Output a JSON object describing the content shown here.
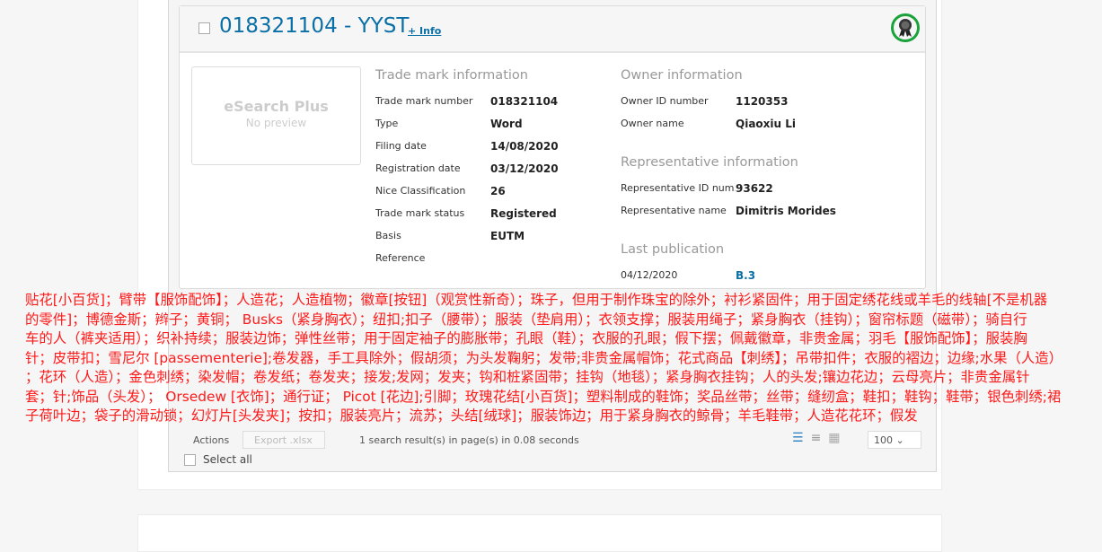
{
  "card": {
    "title": "018321104 - YYST",
    "info_link": "+ Info",
    "preview_title": "eSearch Plus",
    "preview_sub": "No preview",
    "badge_icon": "award-ribbon-icon",
    "badge_color": "#1aa33b",
    "trademark": {
      "heading": "Trade mark information",
      "rows": [
        {
          "k": "Trade mark number",
          "v": "018321104"
        },
        {
          "k": "Type",
          "v": "Word"
        },
        {
          "k": "Filing date",
          "v": "14/08/2020"
        },
        {
          "k": "Registration date",
          "v": "03/12/2020"
        },
        {
          "k": "Nice Classification",
          "v": "26"
        },
        {
          "k": "Trade mark status",
          "v": "Registered"
        },
        {
          "k": "Basis",
          "v": "EUTM"
        },
        {
          "k": "Reference",
          "v": ""
        }
      ]
    },
    "owner": {
      "heading": "Owner information",
      "rows": [
        {
          "k": "Owner ID number",
          "v": "1120353"
        },
        {
          "k": "Owner name",
          "v": "Qiaoxiu Li"
        }
      ]
    },
    "representative": {
      "heading": "Representative information",
      "rows": [
        {
          "k": "Representative ID num...",
          "v": "93622"
        },
        {
          "k": "Representative name",
          "v": "Dimitris Morides"
        }
      ]
    },
    "publication": {
      "heading": "Last publication",
      "date": "04/12/2020",
      "code": "B.3"
    }
  },
  "toolbar": {
    "actions": "Actions",
    "export": "Export .xlsx",
    "status": "search result(s) in page(s) in 0.08 seconds",
    "count": "1",
    "per_page": "100",
    "select_all": "Select all"
  },
  "overlay_lines": [
    "贴花[小百货]；臂带【服饰配饰】；人造花；人造植物；徽章[按钮]（观赏性新奇）；珠子，但用于制作珠宝的除外；衬衫紧固件；用于固定绣花线或羊毛的线轴[不是机器",
    "的零件]；博德金斯；辫子；黄铜； Busks（紧身胸衣）；纽扣;扣子（腰带）；服装（垫肩用）；衣领支撑；服装用绳子；紧身胸衣（挂钩）；窗帘标题（磁带）；骑自行",
    "车的人（裤夹适用）；织补持续；服装边饰；弹性丝带；用于固定袖子的膨胀带；孔眼（鞋）；衣服的孔眼；假下摆；佩戴徽章，非贵金属；羽毛【服饰配饰】；服装胸",
    "针；皮带扣；雪尼尔 [passementerie];卷发器，手工具除外；假胡须；为头发鞠躬；发带;非贵金属帽饰；花式商品【刺绣】；吊带扣件；衣服的褶边；边缘;水果（人造）",
    "；花环（人造）；金色刺绣；染发帽；卷发纸；卷发夹；接发;发网；发夹；钩和桩紧固带；挂钩（地毯）；紧身胸衣挂钩；人的头发;镶边花边；云母亮片；非贵金属针",
    "套；针;饰品（头发）； Orsedew [衣饰]；通行证； Picot [花边];引脚；玫瑰花结[小百货]；塑料制成的鞋饰；奖品丝带；丝带；缝纫盒；鞋扣；鞋钩；鞋带；银色刺绣;裙",
    "子荷叶边；袋子的滑动锁；幻灯片[头发夹]；按扣；服装亮片；流苏；头结[绒球]；服装饰边；用于紧身胸衣的鲸骨；羊毛鞋带；人造花花环；假发"
  ]
}
